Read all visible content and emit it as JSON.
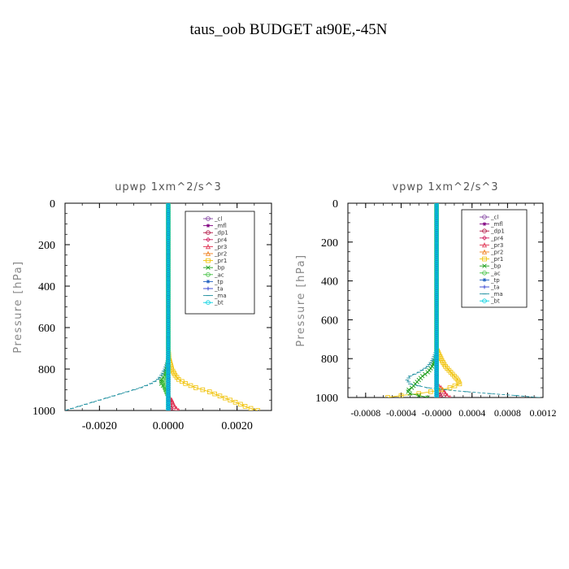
{
  "figure_title": "taus_oob  BUDGET at90E,-45N",
  "legend_colors": {
    "_cl": "#8040a0",
    "_mfl": "#800080",
    "_dp1": "#b01040",
    "_pr4": "#d02060",
    "_pr3": "#e03050",
    "_pr2": "#f08020",
    "_pr1": "#f0c000",
    "_bp": "#20a020",
    "_ac": "#40c040",
    "_tp": "#2060c0",
    "_ta": "#3040d0",
    "_ma": "#2090a0",
    "_bt": "#00d0e0"
  },
  "chart_data": [
    {
      "type": "line",
      "title": "upwp   1xm^2/s^3",
      "ylabel": "Pressure [hPa]",
      "xlabel": "",
      "xlim": [
        -0.003,
        0.003
      ],
      "ylim": [
        1000,
        0
      ],
      "x_ticks": [
        -0.002,
        0.0,
        0.002
      ],
      "x_tick_labels": [
        "-0.0020",
        "0.0000",
        "0.0020"
      ],
      "y_ticks": [
        0,
        200,
        400,
        600,
        800,
        1000
      ],
      "y_tick_labels": [
        "0",
        "200",
        "400",
        "600",
        "800",
        "1000"
      ],
      "legend_placement": "top-right",
      "pressure": [
        0,
        100,
        200,
        300,
        400,
        500,
        600,
        700,
        750,
        800,
        830,
        850,
        870,
        890,
        910,
        930,
        950,
        970,
        985,
        1000
      ],
      "series": [
        {
          "name": "_cl",
          "values": [
            0,
            0,
            0,
            0,
            0,
            0,
            0,
            0,
            0,
            0,
            0,
            0,
            0,
            0,
            0,
            0,
            0,
            0,
            0,
            0
          ]
        },
        {
          "name": "_mfl",
          "values": [
            0,
            0,
            0,
            0,
            0,
            0,
            0,
            0,
            0,
            0,
            0,
            0,
            0,
            0,
            0,
            0,
            0,
            0,
            0,
            0
          ]
        },
        {
          "name": "_dp1",
          "values": [
            0,
            0,
            0,
            0,
            0,
            0,
            0,
            0,
            0,
            0,
            0,
            0,
            0,
            0,
            0,
            0,
            3e-05,
            5e-05,
            6e-05,
            8e-05
          ]
        },
        {
          "name": "_pr4",
          "values": [
            0,
            0,
            0,
            0,
            0,
            0,
            0,
            0,
            0,
            0,
            0,
            0,
            0,
            0,
            0,
            0,
            0,
            0,
            0,
            0
          ]
        },
        {
          "name": "_pr3",
          "values": [
            0,
            0,
            0,
            0,
            0,
            0,
            0,
            0,
            0,
            0,
            0,
            0,
            0,
            0,
            0,
            0,
            0.0001,
            0.00015,
            0.0002,
            0.0003
          ]
        },
        {
          "name": "_pr2",
          "values": [
            0,
            0,
            0,
            0,
            0,
            0,
            0,
            0,
            0,
            0,
            0,
            0,
            0,
            0,
            0,
            0,
            0,
            0,
            0,
            0
          ]
        },
        {
          "name": "_pr1",
          "values": [
            0,
            0,
            0,
            0,
            0,
            0,
            0,
            0,
            2e-05,
            0.0001,
            0.0002,
            0.0003,
            0.0005,
            0.0008,
            0.0012,
            0.0015,
            0.0018,
            0.0021,
            0.0023,
            0.0026
          ]
        },
        {
          "name": "_bp",
          "values": [
            0,
            0,
            0,
            0,
            0,
            0,
            0,
            0,
            0,
            -5e-05,
            -0.0001,
            -0.0002,
            -0.0002,
            -0.0001,
            -5e-05,
            0,
            0,
            0,
            0,
            0
          ]
        },
        {
          "name": "_ac",
          "values": [
            0,
            0,
            0,
            0,
            0,
            0,
            0,
            0,
            0,
            0,
            -5e-05,
            -0.0001,
            -0.00015,
            -0.0001,
            -5e-05,
            0,
            0,
            0,
            0,
            0
          ]
        },
        {
          "name": "_tp",
          "values": [
            0,
            0,
            0,
            0,
            0,
            0,
            0,
            0,
            0,
            0,
            0,
            0,
            0,
            0,
            0,
            0,
            0,
            0,
            0,
            0
          ]
        },
        {
          "name": "_ta",
          "values": [
            0,
            0,
            0,
            0,
            0,
            0,
            0,
            0,
            0,
            0,
            0,
            0,
            0,
            0,
            0,
            0,
            0,
            0,
            0,
            0
          ]
        },
        {
          "name": "_ma",
          "values": [
            0,
            0,
            0,
            0,
            0,
            0,
            0,
            0,
            0,
            -0.0001,
            -0.0002,
            -0.0003,
            -0.0005,
            -0.0008,
            -0.0012,
            -0.0016,
            -0.002,
            -0.0024,
            -0.0027,
            -0.003
          ]
        },
        {
          "name": "_bt",
          "values": [
            0,
            0,
            0,
            0,
            0,
            0,
            0,
            0,
            0,
            0,
            0,
            0,
            0,
            0,
            0,
            0,
            0,
            0,
            0,
            0
          ]
        }
      ]
    },
    {
      "type": "line",
      "title": "vpwp   1xm^2/s^3",
      "ylabel": "Pressure [hPa]",
      "xlabel": "",
      "xlim": [
        -0.001,
        0.0012
      ],
      "ylim": [
        1000,
        0
      ],
      "x_ticks": [
        -0.0008,
        -0.0004,
        0.0,
        0.0004,
        0.0008,
        0.0012
      ],
      "x_tick_labels": [
        "-0.0008",
        "-0.0004",
        "-0.0000",
        "0.0004",
        "0.0008",
        "0.0012"
      ],
      "y_ticks": [
        0,
        200,
        400,
        600,
        800,
        1000
      ],
      "y_tick_labels": [
        "0",
        "200",
        "400",
        "600",
        "800",
        "1000"
      ],
      "legend_placement": "top-right",
      "pressure": [
        0,
        100,
        200,
        300,
        400,
        500,
        600,
        700,
        750,
        780,
        810,
        840,
        870,
        890,
        910,
        930,
        950,
        965,
        980,
        990,
        1000
      ],
      "series": [
        {
          "name": "_cl",
          "values": [
            0,
            0,
            0,
            0,
            0,
            0,
            0,
            0,
            0,
            0,
            0,
            0,
            0,
            0,
            0,
            0,
            0,
            0,
            0,
            0,
            0
          ]
        },
        {
          "name": "_mfl",
          "values": [
            0,
            0,
            0,
            0,
            0,
            0,
            0,
            0,
            0,
            0,
            0,
            0,
            0,
            0,
            0,
            0,
            0,
            0,
            0,
            0,
            0
          ]
        },
        {
          "name": "_dp1",
          "values": [
            0,
            0,
            0,
            0,
            0,
            0,
            0,
            0,
            0,
            0,
            0,
            0,
            0,
            0,
            0,
            0,
            0,
            2e-05,
            3e-05,
            4e-05,
            5e-05
          ]
        },
        {
          "name": "_pr4",
          "values": [
            0,
            0,
            0,
            0,
            0,
            0,
            0,
            0,
            0,
            0,
            0,
            0,
            0,
            0,
            0,
            0,
            0,
            0,
            0,
            0,
            0
          ]
        },
        {
          "name": "_pr3",
          "values": [
            0,
            0,
            0,
            0,
            0,
            0,
            0,
            0,
            0,
            0,
            0,
            0,
            0,
            0,
            0,
            0,
            5e-05,
            8e-05,
            0.0001,
            0.00012,
            0.00015
          ]
        },
        {
          "name": "_pr2",
          "values": [
            0,
            0,
            0,
            0,
            0,
            0,
            0,
            0,
            0,
            0,
            0,
            0,
            0,
            0,
            0,
            0,
            0,
            0,
            0,
            0,
            0
          ]
        },
        {
          "name": "_pr1",
          "values": [
            0,
            0,
            0,
            0,
            0,
            0,
            0,
            0,
            0,
            3e-05,
            6e-05,
            0.0001,
            0.00016,
            0.0002,
            0.00024,
            0.00026,
            0.00015,
            0,
            -0.0002,
            -0.0004,
            -0.00055
          ]
        },
        {
          "name": "_bp",
          "values": [
            0,
            0,
            0,
            0,
            0,
            0,
            0,
            0,
            0,
            0,
            -2e-05,
            -5e-05,
            -0.0001,
            -0.00016,
            -0.0002,
            -0.00024,
            -0.00028,
            -0.00033,
            -0.0003,
            -0.0002,
            -0.0001
          ]
        },
        {
          "name": "_ac",
          "values": [
            0,
            0,
            0,
            0,
            0,
            0,
            0,
            0,
            0,
            0,
            0,
            0,
            0,
            0,
            0,
            0,
            0,
            0,
            0,
            0,
            0
          ]
        },
        {
          "name": "_tp",
          "values": [
            0,
            0,
            0,
            0,
            0,
            0,
            0,
            0,
            0,
            0,
            0,
            0,
            0,
            0,
            0,
            0,
            0,
            0,
            0,
            0,
            0
          ]
        },
        {
          "name": "_ta",
          "values": [
            0,
            0,
            0,
            0,
            0,
            0,
            0,
            0,
            0,
            0,
            0,
            0,
            0,
            0,
            0,
            0,
            0,
            0,
            0,
            0,
            0
          ]
        },
        {
          "name": "_ma",
          "values": [
            0,
            0,
            0,
            0,
            0,
            0,
            0,
            0,
            0,
            -2e-05,
            -5e-05,
            -0.0001,
            -0.0002,
            -0.0003,
            -0.00033,
            -0.0003,
            -0.0001,
            0.0002,
            0.0006,
            0.0009,
            0.00115
          ]
        },
        {
          "name": "_bt",
          "values": [
            0,
            0,
            0,
            0,
            0,
            0,
            0,
            0,
            0,
            0,
            0,
            0,
            0,
            0,
            0,
            0,
            0,
            0,
            0,
            0,
            0
          ]
        }
      ]
    }
  ]
}
